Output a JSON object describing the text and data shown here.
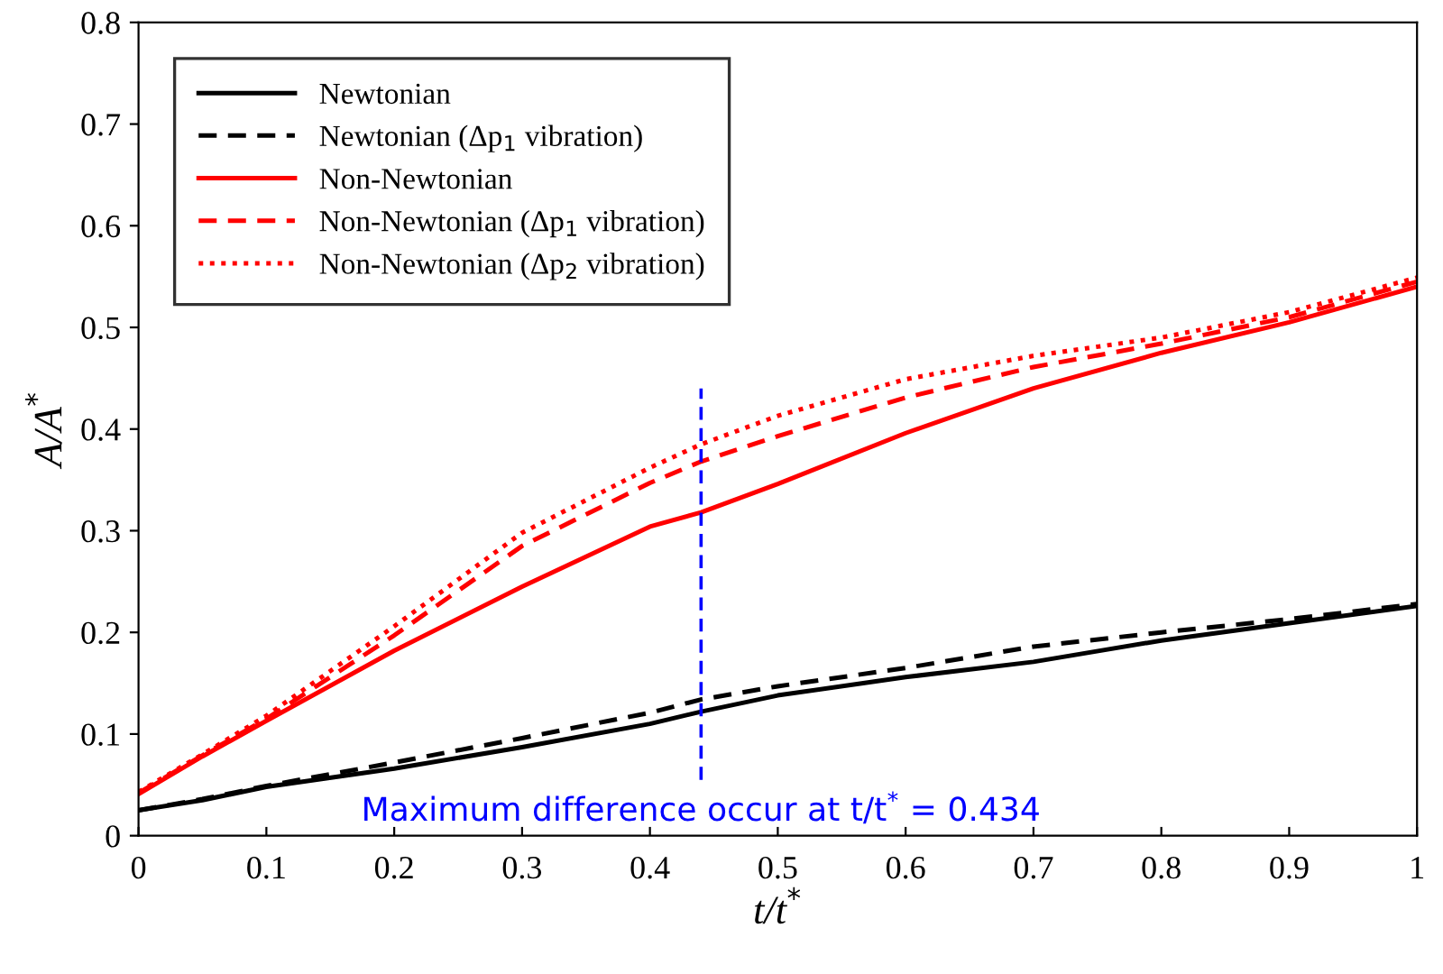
{
  "chart_data": {
    "type": "line",
    "xlabel": "t/t$^{*}$",
    "ylabel": "A/A$^{*}$",
    "xlim": [
      0,
      1
    ],
    "ylim": [
      0,
      0.8
    ],
    "xticks": [
      0,
      0.1,
      0.2,
      0.3,
      0.4,
      0.5,
      0.6,
      0.7,
      0.8,
      0.9,
      1
    ],
    "yticks": [
      0,
      0.1,
      0.2,
      0.3,
      0.4,
      0.5,
      0.6,
      0.7,
      0.8
    ],
    "grid": false,
    "legend": "top left",
    "marker": "none",
    "x": [
      0,
      0.05,
      0.1,
      0.2,
      0.3,
      0.4,
      0.44,
      0.5,
      0.6,
      0.7,
      0.8,
      0.9,
      1
    ],
    "series": [
      {
        "name": "Newtonian",
        "color": "#000000",
        "line_style": "solid",
        "values": [
          0.025,
          0.035,
          0.048,
          0.066,
          0.087,
          0.11,
          0.122,
          0.138,
          0.156,
          0.171,
          0.192,
          0.209,
          0.226
        ]
      },
      {
        "name": "Newtonian (Δp$_{1}$ vibration)",
        "color": "#000000",
        "line_style": "dashed",
        "values": [
          0.025,
          0.036,
          0.049,
          0.072,
          0.096,
          0.121,
          0.134,
          0.147,
          0.165,
          0.186,
          0.2,
          0.213,
          0.228
        ]
      },
      {
        "name": "Non-Newtonian",
        "color": "#ff0000",
        "line_style": "solid",
        "values": [
          0.041,
          0.078,
          0.113,
          0.182,
          0.245,
          0.304,
          0.318,
          0.346,
          0.396,
          0.44,
          0.475,
          0.505,
          0.54
        ]
      },
      {
        "name": "Non-Newtonian (Δp$_{1}$ vibration)",
        "color": "#ff0000",
        "line_style": "dashed",
        "values": [
          0.042,
          0.079,
          0.115,
          0.197,
          0.285,
          0.347,
          0.368,
          0.393,
          0.431,
          0.461,
          0.484,
          0.51,
          0.545
        ]
      },
      {
        "name": "Non-Newtonian (Δp$_{2}$ vibration)",
        "color": "#ff0000",
        "line_style": "dotted",
        "values": [
          0.043,
          0.08,
          0.118,
          0.206,
          0.298,
          0.362,
          0.385,
          0.413,
          0.449,
          0.472,
          0.49,
          0.515,
          0.549
        ]
      },
      {
        "color": "#0000ff",
        "line_style": "dashed",
        "x": [
          0.44,
          0.44
        ],
        "values": [
          0.055,
          0.44
        ]
      }
    ],
    "annotations": [
      {
        "text": "Maximum difference occur at t/t$^{*}$ = 0.434",
        "x": 0.44,
        "y": 0.055
      }
    ]
  }
}
